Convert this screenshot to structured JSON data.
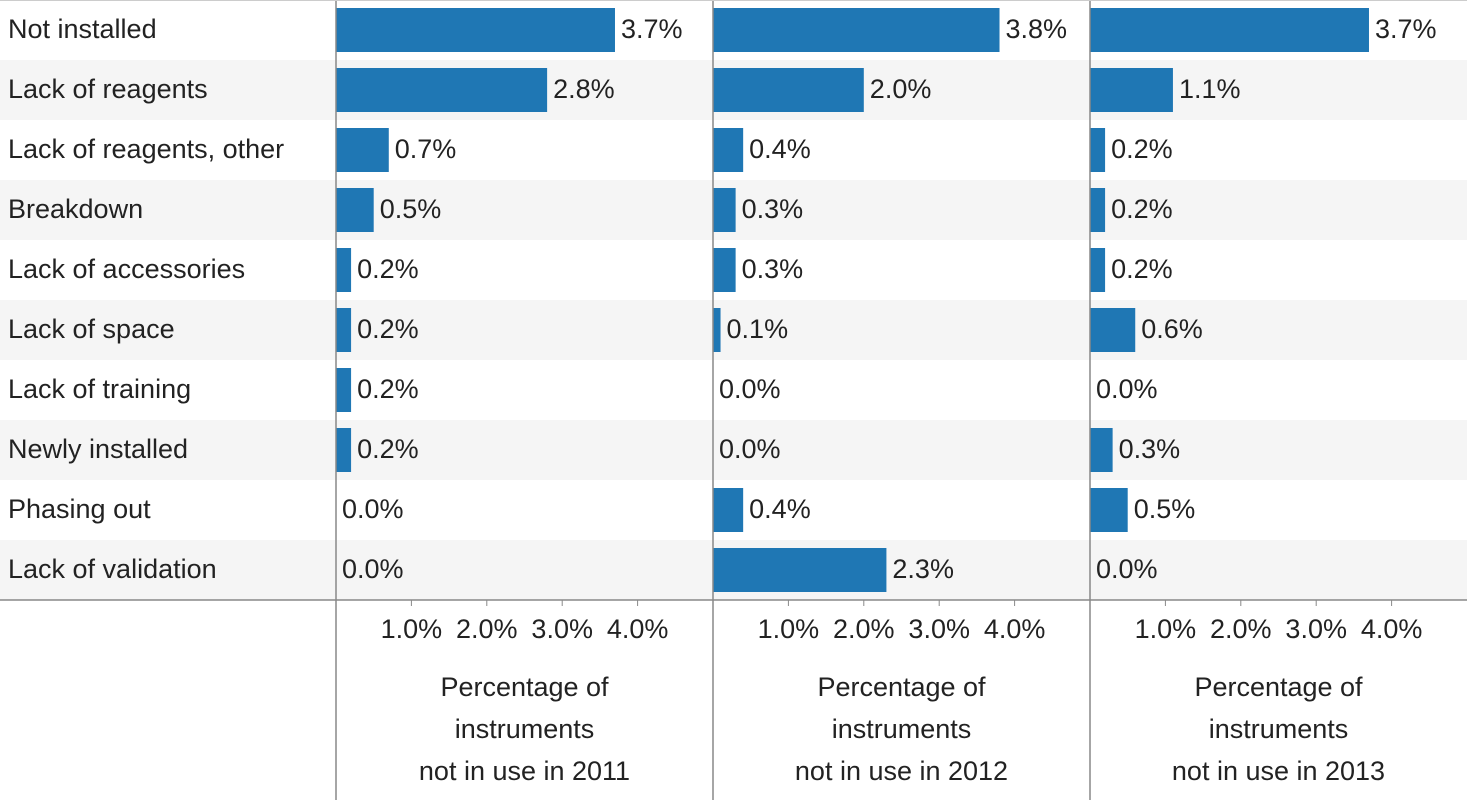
{
  "chart_data": {
    "type": "bar",
    "orientation": "horizontal",
    "color": "#1f77b4",
    "categories": [
      "Not installed",
      "Lack of reagents",
      "Lack of reagents, other",
      "Breakdown",
      "Lack of accessories",
      "Lack of space",
      "Lack of training",
      "Newly installed",
      "Phasing out",
      "Lack of validation"
    ],
    "xlim": [
      0,
      5
    ],
    "xticks": [
      {
        "value": 1,
        "label": "1.0%"
      },
      {
        "value": 2,
        "label": "2.0%"
      },
      {
        "value": 3,
        "label": "3.0%"
      },
      {
        "value": 4,
        "label": "4.0%"
      }
    ],
    "panels": [
      {
        "xlabel": [
          "Percentage of",
          "instruments",
          "not in use in 2011"
        ],
        "values": [
          3.7,
          2.8,
          0.7,
          0.5,
          0.2,
          0.2,
          0.2,
          0.2,
          0.0,
          0.0
        ],
        "value_labels": [
          "3.7%",
          "2.8%",
          "0.7%",
          "0.5%",
          "0.2%",
          "0.2%",
          "0.2%",
          "0.2%",
          "0.0%",
          "0.0%"
        ]
      },
      {
        "xlabel": [
          "Percentage of",
          "instruments",
          "not in use in 2012"
        ],
        "values": [
          3.8,
          2.0,
          0.4,
          0.3,
          0.3,
          0.1,
          0.0,
          0.0,
          0.4,
          2.3
        ],
        "value_labels": [
          "3.8%",
          "2.0%",
          "0.4%",
          "0.3%",
          "0.3%",
          "0.1%",
          "0.0%",
          "0.0%",
          "0.4%",
          "2.3%"
        ]
      },
      {
        "xlabel": [
          "Percentage of",
          "instruments",
          "not in use in 2013"
        ],
        "values": [
          3.7,
          1.1,
          0.2,
          0.2,
          0.2,
          0.6,
          0.0,
          0.3,
          0.5,
          0.0
        ],
        "value_labels": [
          "3.7%",
          "1.1%",
          "0.2%",
          "0.2%",
          "0.2%",
          "0.6%",
          "0.0%",
          "0.3%",
          "0.5%",
          "0.0%"
        ]
      }
    ]
  }
}
